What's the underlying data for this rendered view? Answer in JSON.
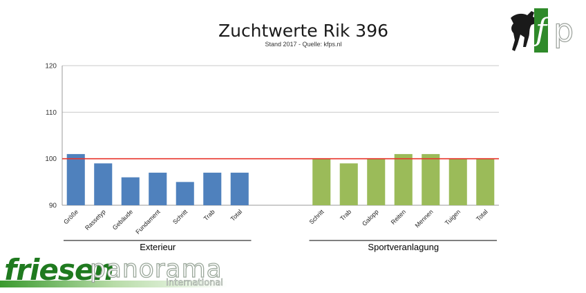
{
  "chart_data": {
    "type": "bar",
    "title": "Zuchtwerte Rik 396",
    "subtitle": "Stand 2017 - Quelle: kfps.nl",
    "ylim": [
      90,
      120
    ],
    "yticks": [
      90,
      100,
      110,
      120
    ],
    "reference_line": 100,
    "reference_color": "#e8332a",
    "grid": true,
    "groups": [
      {
        "name": "Exterieur",
        "color": "#4f81bd",
        "categories": [
          "Größe",
          "Rassetyp",
          "Gebäude",
          "Fundament",
          "Schritt",
          "Trab",
          "Total"
        ],
        "values": [
          101,
          99,
          96,
          97,
          95,
          97,
          97
        ]
      },
      {
        "name": "Sportveranlagung",
        "color": "#9bbb59",
        "categories": [
          "Schritt",
          "Trab",
          "Galopp",
          "Reiten",
          "Mennen",
          "Tuigen",
          "Total"
        ],
        "values": [
          100,
          99,
          100,
          101,
          101,
          100,
          100
        ]
      }
    ]
  },
  "logos": {
    "kfp": "kfp",
    "brand_main": "friesen",
    "brand_second": "panorama",
    "brand_sub": "International"
  }
}
